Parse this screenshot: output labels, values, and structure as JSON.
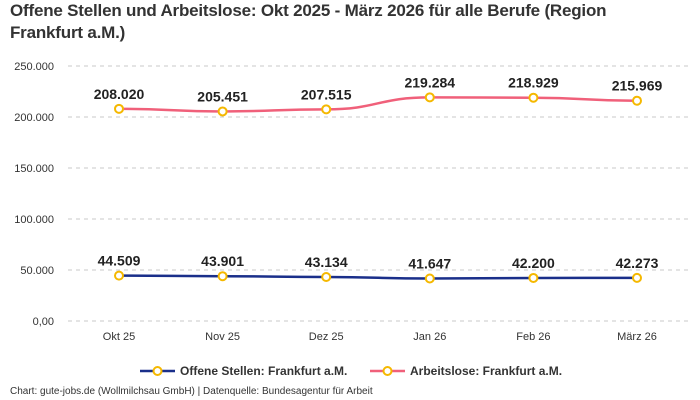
{
  "chart_data": {
    "type": "line",
    "title": "Offene Stellen und Arbeitslose: Okt 2025 - März 2026 für alle Berufe (Region Frankfurt a.M.)",
    "categories": [
      "Okt 25",
      "Nov 25",
      "Dez 25",
      "Jan 26",
      "Feb 26",
      "März 26"
    ],
    "series": [
      {
        "name": "Offene Stellen: Frankfurt a.M.",
        "color": "#1a2f8a",
        "values": [
          44509,
          43901,
          43134,
          41647,
          42200,
          42273
        ],
        "labels": [
          "44.509",
          "43.901",
          "43.134",
          "41.647",
          "42.200",
          "42.273"
        ]
      },
      {
        "name": "Arbeitslose: Frankfurt a.M.",
        "color": "#f0607a",
        "values": [
          208020,
          205451,
          207515,
          219284,
          218929,
          215969
        ],
        "labels": [
          "208.020",
          "205.451",
          "207.515",
          "219.284",
          "218.929",
          "215.969"
        ]
      }
    ],
    "marker_color": "#f5b800",
    "ylim": [
      0,
      250000
    ],
    "yticks": [
      0,
      50000,
      100000,
      150000,
      200000,
      250000
    ],
    "ytick_labels": [
      "0,00",
      "50.000",
      "100.000",
      "150.000",
      "200.000",
      "250.000"
    ],
    "grid": "horizontal dashed",
    "legend_position": "bottom",
    "xlabel": "",
    "ylabel": ""
  },
  "footer": "Chart: gute-jobs.de (Wollmilchsau GmbH) | Datenquelle: Bundesagentur für Arbeit"
}
